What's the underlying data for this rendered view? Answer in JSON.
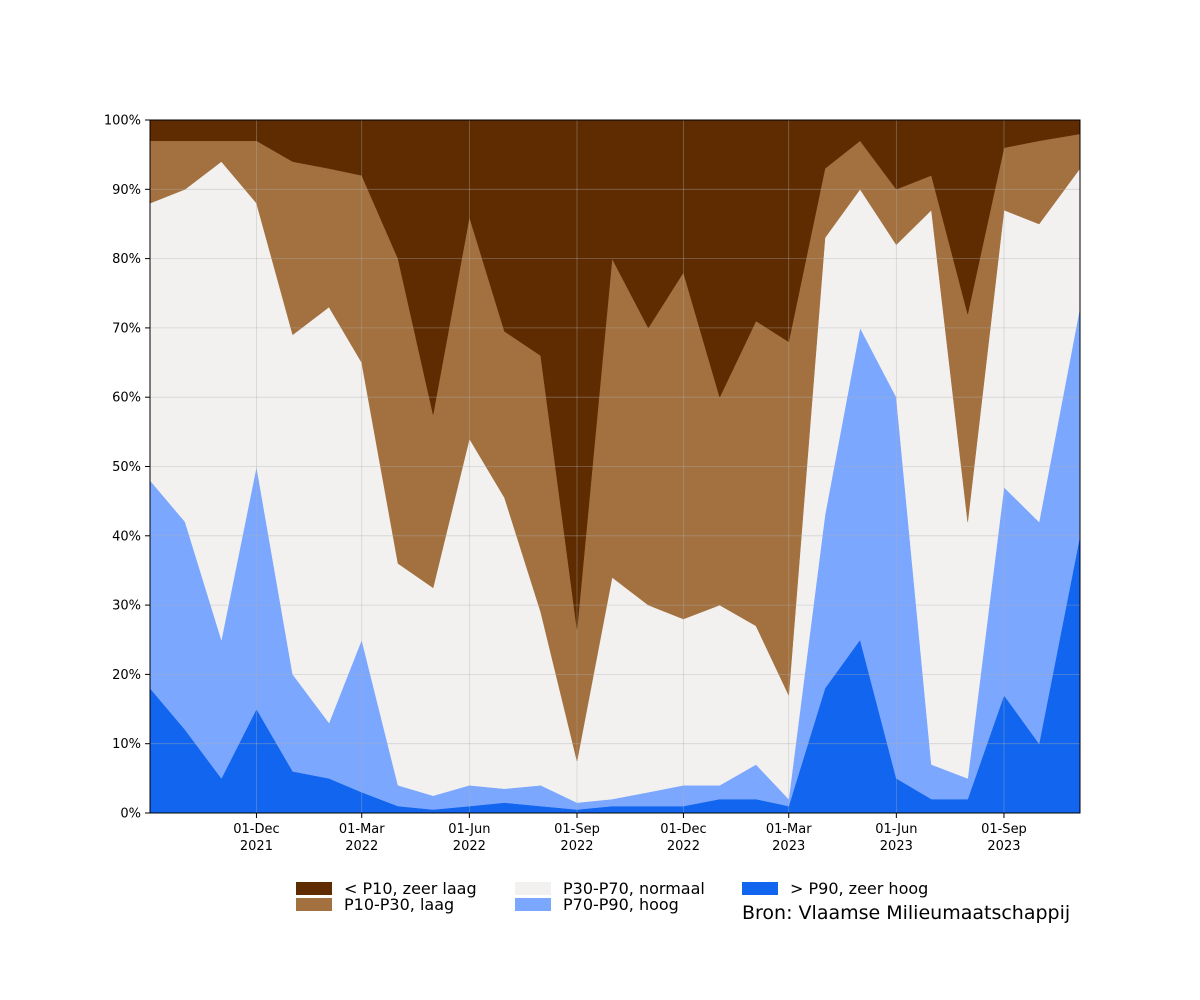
{
  "chart_data": {
    "type": "area",
    "stacking": "percent",
    "x": [
      "2021-09-01",
      "2021-10-01",
      "2021-11-01",
      "2021-12-01",
      "2022-01-01",
      "2022-02-01",
      "2022-03-01",
      "2022-04-01",
      "2022-05-01",
      "2022-06-01",
      "2022-07-01",
      "2022-08-01",
      "2022-09-01",
      "2022-10-01",
      "2022-11-01",
      "2022-12-01",
      "2023-01-01",
      "2023-02-01",
      "2023-03-01",
      "2023-04-01",
      "2023-05-01",
      "2023-06-01",
      "2023-07-01",
      "2023-08-01",
      "2023-09-01",
      "2023-10-01",
      "2023-11-05"
    ],
    "xlim": [
      "2021-09-01",
      "2023-11-05"
    ],
    "ylim": [
      0,
      100
    ],
    "yticks": [
      "0%",
      "10%",
      "20%",
      "30%",
      "40%",
      "50%",
      "60%",
      "70%",
      "80%",
      "90%",
      "100%"
    ],
    "xticks": [
      {
        "date": "2021-12-01",
        "label": "01-Dec",
        "year": "2021"
      },
      {
        "date": "2022-03-01",
        "label": "01-Mar",
        "year": "2022"
      },
      {
        "date": "2022-06-01",
        "label": "01-Jun",
        "year": "2022"
      },
      {
        "date": "2022-09-01",
        "label": "01-Sep",
        "year": "2022"
      },
      {
        "date": "2022-12-01",
        "label": "01-Dec",
        "year": "2022"
      },
      {
        "date": "2023-03-01",
        "label": "01-Mar",
        "year": "2023"
      },
      {
        "date": "2023-06-01",
        "label": "01-Jun",
        "year": "2023"
      },
      {
        "date": "2023-09-01",
        "label": "01-Sep",
        "year": "2023"
      }
    ],
    "grid": true,
    "legend_position": "bottom",
    "series": [
      {
        "name": "> P90, zeer hoog",
        "color": "#1165EE",
        "values": [
          18,
          12,
          5,
          15,
          6,
          5,
          3,
          1,
          0.5,
          1,
          1.5,
          1,
          0.5,
          1,
          1,
          1,
          2,
          2,
          1,
          18,
          25,
          5,
          2,
          2,
          17,
          10,
          40
        ]
      },
      {
        "name": "P70-P90, hoog",
        "color": "#7BA7FF",
        "values": [
          30,
          30,
          20,
          35,
          14,
          8,
          22,
          3,
          2,
          3,
          2,
          3,
          1,
          1,
          2,
          3,
          2,
          5,
          1,
          25,
          45,
          55,
          5,
          3,
          30,
          32,
          33
        ]
      },
      {
        "name": "P30-P70, normaal",
        "color": "#F2F1F0",
        "values": [
          40,
          48,
          69,
          38,
          49,
          60,
          40,
          32,
          30,
          50,
          42,
          25,
          6,
          32,
          27,
          24,
          26,
          20,
          15,
          40,
          20,
          22,
          80,
          37,
          40,
          43,
          20
        ]
      },
      {
        "name": "P10-P30, laag",
        "color": "#A3713F",
        "values": [
          9,
          7,
          3,
          9,
          25,
          20,
          27,
          44,
          25,
          32,
          24,
          37,
          19,
          46,
          40,
          50,
          30,
          44,
          51,
          10,
          7,
          8,
          5,
          30,
          9,
          12,
          5
        ]
      },
      {
        "name": "< P10, zeer laag",
        "color": "#5F2B00",
        "values": [
          3,
          3,
          3,
          3,
          6,
          7,
          8,
          20,
          42.5,
          14,
          30.5,
          34,
          73.5,
          20,
          30,
          22,
          40,
          29,
          32,
          7,
          3,
          10,
          8,
          28,
          4,
          3,
          2
        ]
      }
    ]
  },
  "legend": {
    "items": [
      {
        "label": "< P10, zeer laag",
        "color": "#5F2B00"
      },
      {
        "label": "P10-P30, laag",
        "color": "#A3713F"
      },
      {
        "label": "P30-P70, normaal",
        "color": "#F2F1F0"
      },
      {
        "label": "P70-P90, hoog",
        "color": "#7BA7FF"
      },
      {
        "label": "> P90, zeer hoog",
        "color": "#1165EE"
      }
    ]
  },
  "source": "Bron: Vlaamse Milieumaatschappij"
}
